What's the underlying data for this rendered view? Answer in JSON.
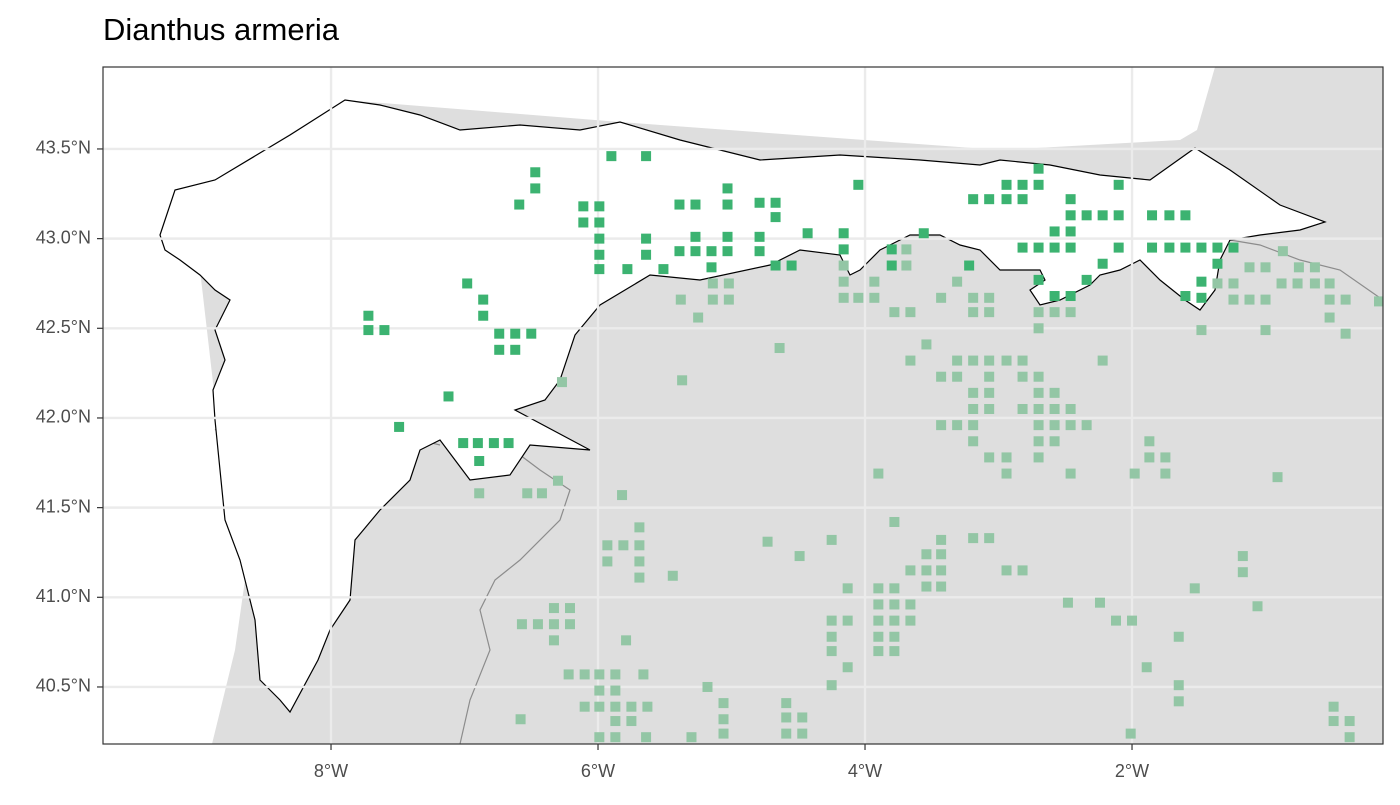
{
  "chart_data": {
    "type": "scatter",
    "title": "Dianthus armeria",
    "xlim": [
      -9.708,
      -0.12
    ],
    "ylim": [
      40.182,
      43.957
    ],
    "xticks": [
      {
        "value": -8,
        "label": "8°W"
      },
      {
        "value": -6,
        "label": "6°W"
      },
      {
        "value": -4,
        "label": "4°W"
      },
      {
        "value": -2,
        "label": "2°W"
      }
    ],
    "yticks": [
      {
        "value": 40.5,
        "label": "40.5°N"
      },
      {
        "value": 41.0,
        "label": "41.0°N"
      },
      {
        "value": 41.5,
        "label": "41.5°N"
      },
      {
        "value": 42.0,
        "label": "42.0°N"
      },
      {
        "value": 42.5,
        "label": "42.5°N"
      },
      {
        "value": 43.0,
        "label": "43.0°N"
      },
      {
        "value": 43.5,
        "label": "43.5°N"
      }
    ],
    "grid": true,
    "series": [
      {
        "color": "#3cb371",
        "x": [
          -5.9,
          -5.64,
          -6.47,
          -6.47,
          -6.59,
          -7.72,
          -7.72,
          -7.6,
          -6.98,
          -6.86,
          -6.86,
          -6.74,
          -6.62,
          -6.5,
          -6.74,
          -6.62,
          -7.12,
          -7.49,
          -7.01,
          -6.9,
          -6.78,
          -6.67,
          -6.89,
          -6.11,
          -5.99,
          -6.11,
          -5.99,
          -5.99,
          -5.99,
          -5.99,
          -5.78,
          -5.64,
          -5.64,
          -5.51,
          -5.39,
          -5.27,
          -5.27,
          -5.39,
          -5.27,
          -5.15,
          -5.15,
          -5.03,
          -5.03,
          -5.03,
          -5.03,
          -4.79,
          -4.67,
          -4.67,
          -4.79,
          -4.79,
          -4.67,
          -4.55,
          -4.43,
          -4.16,
          -4.16,
          -4.05,
          -3.8,
          -3.8,
          -3.56,
          -3.22,
          -3.19,
          -3.07,
          -2.94,
          -2.82,
          -2.94,
          -2.82,
          -2.7,
          -2.7,
          -2.82,
          -2.7,
          -2.58,
          -2.46,
          -2.58,
          -2.46,
          -2.46,
          -2.46,
          -2.34,
          -2.22,
          -2.1,
          -2.1,
          -2.22,
          -2.34,
          -2.1,
          -2.7,
          -2.58,
          -2.46,
          -1.85,
          -1.72,
          -1.6,
          -1.85,
          -1.72,
          -1.6,
          -1.48,
          -1.36,
          -1.24,
          -1.36,
          -1.48,
          -1.6,
          -1.48
        ],
        "y": [
          43.46,
          43.46,
          43.37,
          43.28,
          43.19,
          42.57,
          42.49,
          42.49,
          42.75,
          42.66,
          42.57,
          42.47,
          42.47,
          42.47,
          42.38,
          42.38,
          42.12,
          41.95,
          41.86,
          41.86,
          41.86,
          41.86,
          41.76,
          43.18,
          43.18,
          43.09,
          43.09,
          43.0,
          42.91,
          42.83,
          42.83,
          43.0,
          42.91,
          42.83,
          43.19,
          43.19,
          43.01,
          42.93,
          42.93,
          42.93,
          42.84,
          42.93,
          43.01,
          43.19,
          43.28,
          43.2,
          43.2,
          43.12,
          43.01,
          42.93,
          42.85,
          42.85,
          43.03,
          43.03,
          42.94,
          43.3,
          42.94,
          42.85,
          43.03,
          42.85,
          43.22,
          43.22,
          43.22,
          43.22,
          43.3,
          43.3,
          43.3,
          43.39,
          42.95,
          42.95,
          42.95,
          42.95,
          43.04,
          43.04,
          43.13,
          43.22,
          43.13,
          43.13,
          43.13,
          43.3,
          42.86,
          42.77,
          42.95,
          42.77,
          42.68,
          42.68,
          43.13,
          43.13,
          43.13,
          42.95,
          42.95,
          42.95,
          42.95,
          42.95,
          42.95,
          42.86,
          42.76,
          42.68,
          42.67
        ]
      },
      {
        "color": "#93c6a5",
        "x": [
          -4.16,
          -4.16,
          -4.16,
          -4.05,
          -3.93,
          -3.93,
          -3.69,
          -3.69,
          -3.78,
          -3.66,
          -3.54,
          -3.66,
          -3.43,
          -3.31,
          -3.19,
          -3.07,
          -3.19,
          -3.07,
          -3.31,
          -3.19,
          -3.07,
          -2.94,
          -2.82,
          -3.43,
          -3.31,
          -3.07,
          -2.82,
          -2.7,
          -3.19,
          -3.07,
          -2.7,
          -2.58,
          -3.19,
          -3.07,
          -2.82,
          -2.7,
          -2.58,
          -2.46,
          -3.43,
          -3.31,
          -3.19,
          -2.7,
          -2.58,
          -2.46,
          -2.34,
          -3.19,
          -2.7,
          -2.58,
          -3.07,
          -2.94,
          -2.7,
          -2.94,
          -2.46,
          -2.22,
          -2.7,
          -2.7,
          -2.58,
          -2.46,
          -5.38,
          -5.14,
          -5.02,
          -5.14,
          -5.02,
          -5.25,
          -4.64,
          -5.37,
          -6.27,
          -3.9,
          -1.98,
          -1.87,
          -1.87,
          -1.75,
          -1.75,
          -0.91,
          -1.36,
          -1.24,
          -1.12,
          -1.0,
          -1.24,
          -1.12,
          -1.0,
          -0.88,
          -0.76,
          -0.87,
          -0.75,
          -0.63,
          -0.63,
          -0.52,
          -0.52,
          -0.4,
          -0.52,
          -0.4,
          -0.15,
          -1.0,
          -1.48,
          -6.89,
          -6.53,
          -6.42,
          -6.3,
          -5.82,
          -5.69,
          -5.93,
          -5.81,
          -5.69,
          -5.93,
          -5.69,
          -5.69,
          -5.44,
          -4.73,
          -4.49,
          -4.25,
          -3.78,
          -3.54,
          -3.43,
          -3.43,
          -3.66,
          -3.54,
          -3.43,
          -3.54,
          -3.43,
          -3.19,
          -3.07,
          -2.94,
          -2.82,
          -4.13,
          -3.9,
          -3.78,
          -3.9,
          -3.78,
          -3.66,
          -3.9,
          -3.78,
          -3.66,
          -3.9,
          -3.78,
          -3.9,
          -3.78,
          -4.25,
          -4.13,
          -4.25,
          -4.25,
          -4.13,
          -4.25,
          -2.48,
          -2.24,
          -2.12,
          -2.0,
          -1.53,
          -1.17,
          -1.17,
          -1.06,
          -1.65,
          -1.89,
          -1.65,
          -1.65,
          -2.01,
          -6.33,
          -6.21,
          -6.45,
          -6.33,
          -6.21,
          -6.57,
          -6.33,
          -5.79,
          -6.22,
          -6.1,
          -5.99,
          -5.87,
          -5.66,
          -5.99,
          -5.87,
          -6.1,
          -5.99,
          -5.87,
          -5.75,
          -5.63,
          -5.87,
          -5.75,
          -5.99,
          -5.87,
          -5.64,
          -5.3,
          -5.18,
          -5.06,
          -5.06,
          -5.06,
          -6.58,
          -4.59,
          -4.59,
          -4.47,
          -4.59,
          -4.47,
          -0.49,
          -0.49,
          -0.37,
          -0.37
        ],
        "y": [
          42.85,
          42.76,
          42.67,
          42.67,
          42.67,
          42.76,
          42.94,
          42.85,
          42.59,
          42.59,
          42.41,
          42.32,
          42.67,
          42.76,
          42.67,
          42.67,
          42.59,
          42.59,
          42.32,
          42.32,
          42.32,
          42.32,
          42.32,
          42.23,
          42.23,
          42.23,
          42.23,
          42.23,
          42.14,
          42.14,
          42.14,
          42.14,
          42.05,
          42.05,
          42.05,
          42.05,
          42.05,
          42.05,
          41.96,
          41.96,
          41.96,
          41.96,
          41.96,
          41.96,
          41.96,
          41.87,
          41.87,
          41.87,
          41.78,
          41.78,
          41.78,
          41.69,
          41.69,
          42.32,
          42.5,
          42.59,
          42.59,
          42.59,
          42.66,
          42.75,
          42.75,
          42.66,
          42.66,
          42.56,
          42.39,
          42.21,
          42.2,
          41.69,
          41.69,
          41.87,
          41.78,
          41.78,
          41.69,
          41.67,
          42.75,
          42.75,
          42.84,
          42.84,
          42.66,
          42.66,
          42.66,
          42.75,
          42.75,
          42.93,
          42.84,
          42.84,
          42.75,
          42.75,
          42.66,
          42.66,
          42.56,
          42.47,
          42.65,
          42.49,
          42.49,
          41.58,
          41.58,
          41.58,
          41.65,
          41.57,
          41.39,
          41.29,
          41.29,
          41.29,
          41.2,
          41.2,
          41.11,
          41.12,
          41.31,
          41.23,
          41.32,
          41.42,
          41.24,
          41.32,
          41.24,
          41.15,
          41.15,
          41.15,
          41.06,
          41.06,
          41.33,
          41.33,
          41.15,
          41.15,
          41.05,
          41.05,
          41.05,
          40.96,
          40.96,
          40.96,
          40.87,
          40.87,
          40.87,
          40.78,
          40.78,
          40.7,
          40.7,
          40.87,
          40.87,
          40.78,
          40.7,
          40.61,
          40.51,
          40.97,
          40.97,
          40.87,
          40.87,
          41.05,
          41.23,
          41.14,
          40.95,
          40.78,
          40.61,
          40.51,
          40.42,
          40.24,
          40.94,
          40.94,
          40.85,
          40.85,
          40.85,
          40.85,
          40.76,
          40.76,
          40.57,
          40.57,
          40.57,
          40.57,
          40.57,
          40.48,
          40.48,
          40.39,
          40.39,
          40.39,
          40.39,
          40.39,
          40.31,
          40.31,
          40.22,
          40.22,
          40.22,
          40.22,
          40.5,
          40.41,
          40.32,
          40.24,
          40.32,
          40.41,
          40.33,
          40.33,
          40.24,
          40.24,
          40.39,
          40.31,
          40.31,
          40.22
        ]
      }
    ]
  }
}
